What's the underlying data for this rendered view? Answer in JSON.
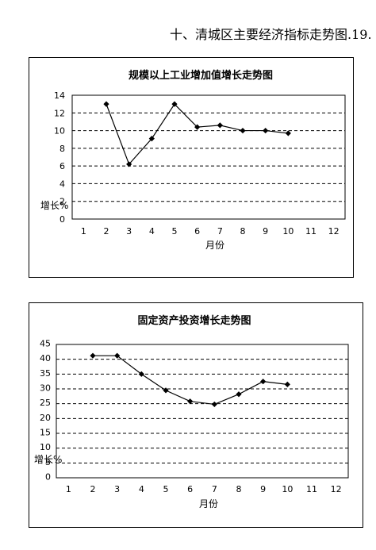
{
  "page": {
    "heading": "十、清城区主要经济指标走势图.19."
  },
  "chart_data": [
    {
      "type": "line",
      "title": "规模以上工业增加值增长走势图",
      "xlabel": "月份",
      "ylabel": "增长%",
      "categories": [
        "1",
        "2",
        "3",
        "4",
        "5",
        "6",
        "7",
        "8",
        "9",
        "10",
        "11",
        "12"
      ],
      "x": [
        2,
        3,
        4,
        5,
        6,
        7,
        8,
        9,
        10
      ],
      "values": [
        13.0,
        6.2,
        9.1,
        13.0,
        10.4,
        10.6,
        10.0,
        10.0,
        9.7
      ],
      "ylim": [
        0,
        14
      ],
      "yticks": [
        0,
        2,
        4,
        6,
        8,
        10,
        12,
        14
      ],
      "grid": true,
      "legend": "none",
      "line_color": "#000000"
    },
    {
      "type": "line",
      "title": "固定资产投资增长走势图",
      "xlabel": "月份",
      "ylabel": "增长%",
      "categories": [
        "1",
        "2",
        "3",
        "4",
        "5",
        "6",
        "7",
        "8",
        "9",
        "10",
        "11",
        "12"
      ],
      "x": [
        2,
        3,
        4,
        5,
        6,
        7,
        8,
        9,
        10
      ],
      "values": [
        41.2,
        41.2,
        35.0,
        29.5,
        25.8,
        24.8,
        28.2,
        32.5,
        31.5
      ],
      "ylim": [
        0,
        45
      ],
      "yticks": [
        0,
        5,
        10,
        15,
        20,
        25,
        30,
        35,
        40,
        45
      ],
      "grid": true,
      "legend": "none",
      "line_color": "#000000"
    }
  ]
}
